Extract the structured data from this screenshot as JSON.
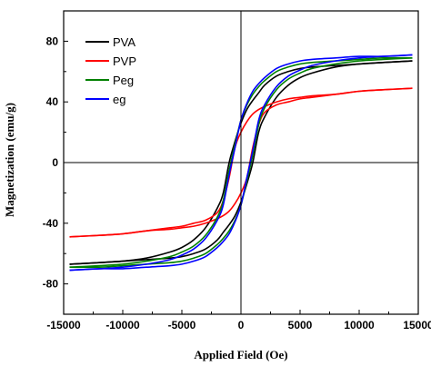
{
  "chart_data": {
    "type": "line",
    "title": "",
    "xlabel": "Applied Field (Oe)",
    "ylabel": "Magnetization (emu/g)",
    "xlim": [
      -15000,
      15000
    ],
    "ylim": [
      -100,
      100
    ],
    "xticks": [
      -15000,
      -10000,
      -5000,
      0,
      5000,
      10000,
      15000
    ],
    "xtick_labels": [
      "-15000",
      "-10000",
      "-5000",
      "0",
      "5000",
      "10000",
      "15000"
    ],
    "yticks": [
      -80,
      -40,
      0,
      40,
      80
    ],
    "ytick_labels": [
      "-80",
      "-40",
      "0",
      "40",
      "80"
    ],
    "zero_lines": true,
    "grid": false,
    "legend_position": "top-left",
    "series": [
      {
        "name": "PVA",
        "color": "#000000",
        "upper_branch": {
          "x": [
            -14500,
            -12000,
            -10000,
            -8000,
            -6000,
            -5000,
            -4000,
            -3000,
            -2000,
            -1500,
            -1000,
            -500,
            0,
            500,
            1000,
            1500,
            2000,
            3000,
            4000,
            5000,
            6000,
            8000,
            10000,
            12000,
            14500
          ],
          "y": [
            -67,
            -66,
            -65,
            -63,
            -59,
            -56,
            -51,
            -43,
            -30,
            -20,
            0,
            14,
            26,
            35,
            41,
            46,
            51,
            57,
            60,
            62,
            63,
            64,
            65,
            66,
            67
          ]
        },
        "lower_branch": {
          "x": [
            14500,
            12000,
            10000,
            8000,
            6000,
            5000,
            4000,
            3000,
            2000,
            1500,
            1000,
            500,
            0,
            -500,
            -1000,
            -1500,
            -2000,
            -3000,
            -4000,
            -5000,
            -6000,
            -8000,
            -10000,
            -12000,
            -14500
          ],
          "y": [
            67,
            66,
            65,
            63,
            59,
            56,
            51,
            43,
            30,
            20,
            0,
            -14,
            -26,
            -35,
            -41,
            -46,
            -51,
            -57,
            -60,
            -62,
            -63,
            -64,
            -65,
            -66,
            -67
          ]
        }
      },
      {
        "name": "PVP",
        "color": "#ff0000",
        "upper_branch": {
          "x": [
            -14500,
            -12000,
            -10000,
            -8000,
            -6000,
            -5000,
            -4000,
            -3000,
            -2000,
            -1500,
            -1000,
            -500,
            0,
            500,
            1000,
            1500,
            2000,
            3000,
            4000,
            5000,
            6000,
            8000,
            10000,
            12000,
            14500
          ],
          "y": [
            -49,
            -48,
            -47,
            -45,
            -43,
            -42,
            -40,
            -38,
            -33,
            -25,
            -10,
            10,
            20,
            27,
            32,
            35,
            37,
            40,
            42,
            43,
            44,
            45,
            47,
            48,
            49
          ]
        },
        "lower_branch": {
          "x": [
            14500,
            12000,
            10000,
            8000,
            6000,
            5000,
            4000,
            3000,
            2000,
            1500,
            1000,
            500,
            0,
            -500,
            -1000,
            -1500,
            -2000,
            -3000,
            -4000,
            -5000,
            -6000,
            -8000,
            -10000,
            -12000,
            -14500
          ],
          "y": [
            49,
            48,
            47,
            45,
            43,
            42,
            40,
            38,
            33,
            25,
            10,
            -10,
            -20,
            -27,
            -32,
            -35,
            -37,
            -40,
            -42,
            -43,
            -44,
            -45,
            -47,
            -48,
            -49
          ]
        }
      },
      {
        "name": "Peg",
        "color": "#008000",
        "upper_branch": {
          "x": [
            -14500,
            -12000,
            -10000,
            -8000,
            -6000,
            -5000,
            -4000,
            -3000,
            -2000,
            -1500,
            -1000,
            -500,
            0,
            500,
            1000,
            1500,
            2000,
            3000,
            4000,
            5000,
            6000,
            8000,
            10000,
            12000,
            14500
          ],
          "y": [
            -69,
            -68,
            -67,
            -65,
            -62,
            -59,
            -55,
            -48,
            -36,
            -25,
            -5,
            12,
            28,
            38,
            45,
            50,
            54,
            60,
            63,
            65,
            66,
            67,
            68,
            69,
            69
          ]
        },
        "lower_branch": {
          "x": [
            14500,
            12000,
            10000,
            8000,
            6000,
            5000,
            4000,
            3000,
            2000,
            1500,
            1000,
            500,
            0,
            -500,
            -1000,
            -1500,
            -2000,
            -3000,
            -4000,
            -5000,
            -6000,
            -8000,
            -10000,
            -12000,
            -14500
          ],
          "y": [
            69,
            68,
            67,
            65,
            62,
            59,
            55,
            48,
            36,
            25,
            5,
            -12,
            -28,
            -38,
            -45,
            -50,
            -54,
            -60,
            -63,
            -65,
            -66,
            -67,
            -68,
            -69,
            -69
          ]
        }
      },
      {
        "name": "eg",
        "color": "#0000ff",
        "upper_branch": {
          "x": [
            -14500,
            -12000,
            -10000,
            -8000,
            -6000,
            -5000,
            -4000,
            -3000,
            -2000,
            -1500,
            -1000,
            -500,
            0,
            500,
            1000,
            1500,
            2000,
            3000,
            4000,
            5000,
            6000,
            8000,
            10000,
            12000,
            14500
          ],
          "y": [
            -71,
            -70,
            -69,
            -67,
            -64,
            -61,
            -57,
            -50,
            -38,
            -28,
            -8,
            10,
            28,
            39,
            47,
            52,
            56,
            62,
            65,
            67,
            68,
            69,
            70,
            70,
            71
          ]
        },
        "lower_branch": {
          "x": [
            14500,
            12000,
            10000,
            8000,
            6000,
            5000,
            4000,
            3000,
            2000,
            1500,
            1000,
            500,
            0,
            -500,
            -1000,
            -1500,
            -2000,
            -3000,
            -4000,
            -5000,
            -6000,
            -8000,
            -10000,
            -12000,
            -14500
          ],
          "y": [
            71,
            70,
            69,
            67,
            64,
            61,
            57,
            50,
            38,
            28,
            8,
            -10,
            -28,
            -39,
            -47,
            -52,
            -56,
            -62,
            -65,
            -67,
            -68,
            -69,
            -70,
            -70,
            -71
          ]
        }
      }
    ]
  }
}
